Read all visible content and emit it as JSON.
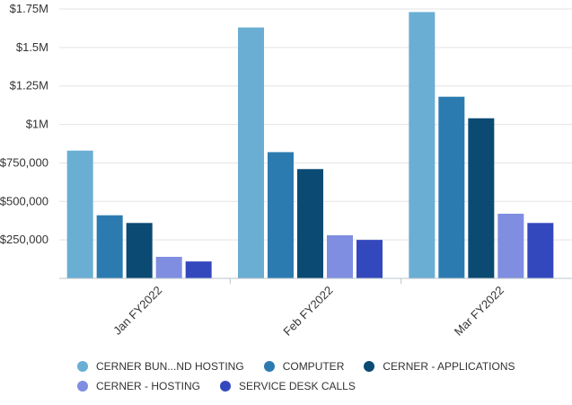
{
  "chart_data": {
    "type": "bar",
    "categories": [
      "Jan FY2022",
      "Feb FY2022",
      "Mar FY2022"
    ],
    "series": [
      {
        "name": "CERNER BUN...ND HOSTING",
        "color": "#6aaed3",
        "values": [
          830000,
          1630000,
          1730000
        ]
      },
      {
        "name": "COMPUTER",
        "color": "#2c7bb0",
        "values": [
          410000,
          820000,
          1180000
        ]
      },
      {
        "name": "CERNER - APPLICATIONS",
        "color": "#0b4a72",
        "values": [
          360000,
          710000,
          1040000
        ]
      },
      {
        "name": "CERNER - HOSTING",
        "color": "#7f8ee0",
        "values": [
          140000,
          280000,
          420000
        ]
      },
      {
        "name": "SERVICE DESK CALLS",
        "color": "#3448be",
        "values": [
          110000,
          250000,
          360000
        ]
      }
    ],
    "ylim": [
      0,
      1750000
    ],
    "yticks": [
      {
        "value": 250000,
        "label": "$250,000"
      },
      {
        "value": 500000,
        "label": "$500,000"
      },
      {
        "value": 750000,
        "label": "$750,000"
      },
      {
        "value": 1000000,
        "label": "$1M"
      },
      {
        "value": 1250000,
        "label": "$1.25M"
      },
      {
        "value": 1500000,
        "label": "$1.5M"
      },
      {
        "value": 1750000,
        "label": "$1.75M"
      }
    ],
    "grid": true,
    "legend_position": "bottom"
  }
}
